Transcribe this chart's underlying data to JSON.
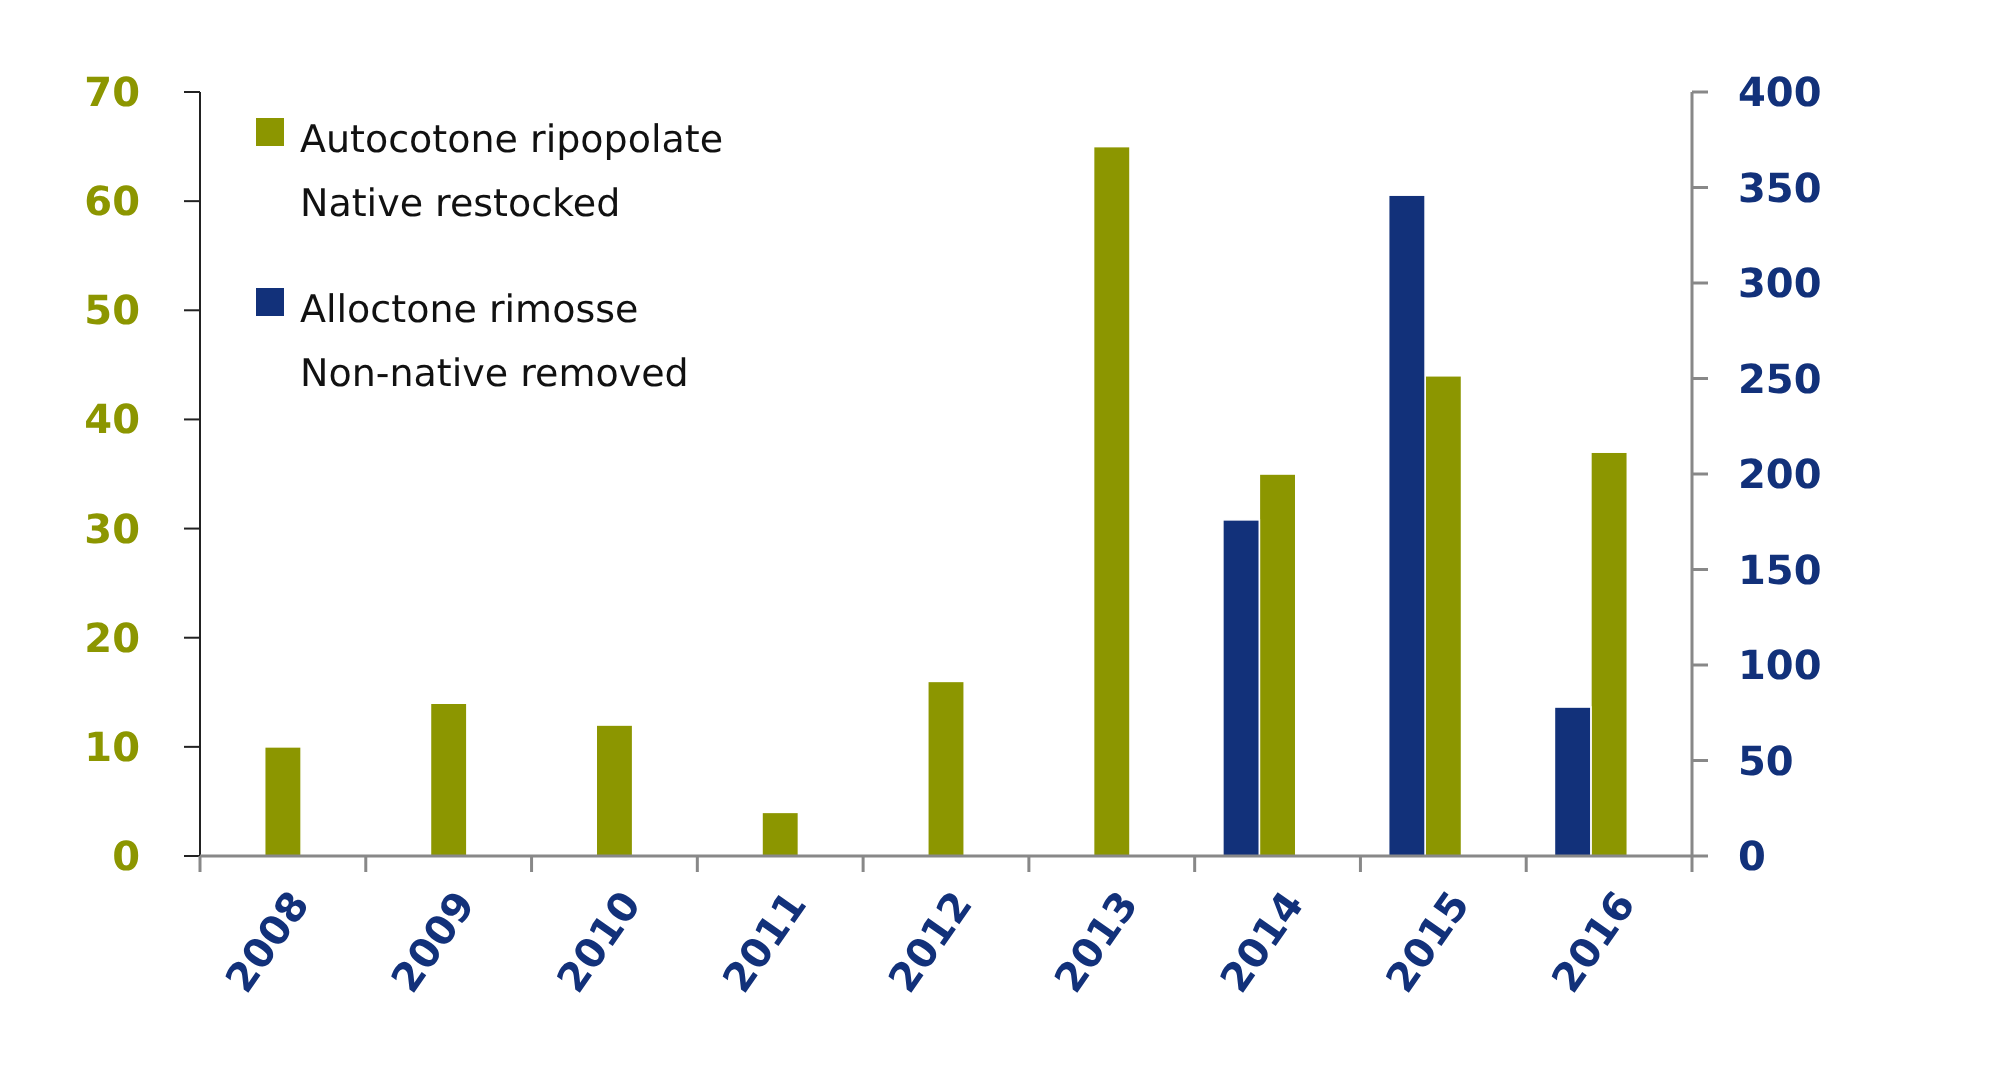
{
  "chart_data": {
    "type": "bar",
    "categories": [
      "2008",
      "2009",
      "2010",
      "2011",
      "2012",
      "2013",
      "2014",
      "2015",
      "2016"
    ],
    "series": [
      {
        "name": "Autocotone ripopolate\nNative restocked",
        "color": "#8c9600",
        "values": [
          10,
          14,
          12,
          4,
          16,
          65,
          35,
          44,
          37
        ]
      },
      {
        "name": "Alloctone rimosse\nNon-native removed",
        "color": "#12317a",
        "axis": "y2",
        "values": [
          null,
          null,
          null,
          null,
          null,
          null,
          176,
          346,
          78
        ]
      }
    ],
    "ylim": [
      0,
      70
    ],
    "yticks": [
      0,
      10,
      20,
      30,
      40,
      50,
      60,
      70
    ],
    "y2lim": [
      0,
      400
    ],
    "y2ticks": [
      0,
      50,
      100,
      150,
      200,
      250,
      300,
      350,
      400
    ],
    "legend": "top left",
    "grid": false
  }
}
